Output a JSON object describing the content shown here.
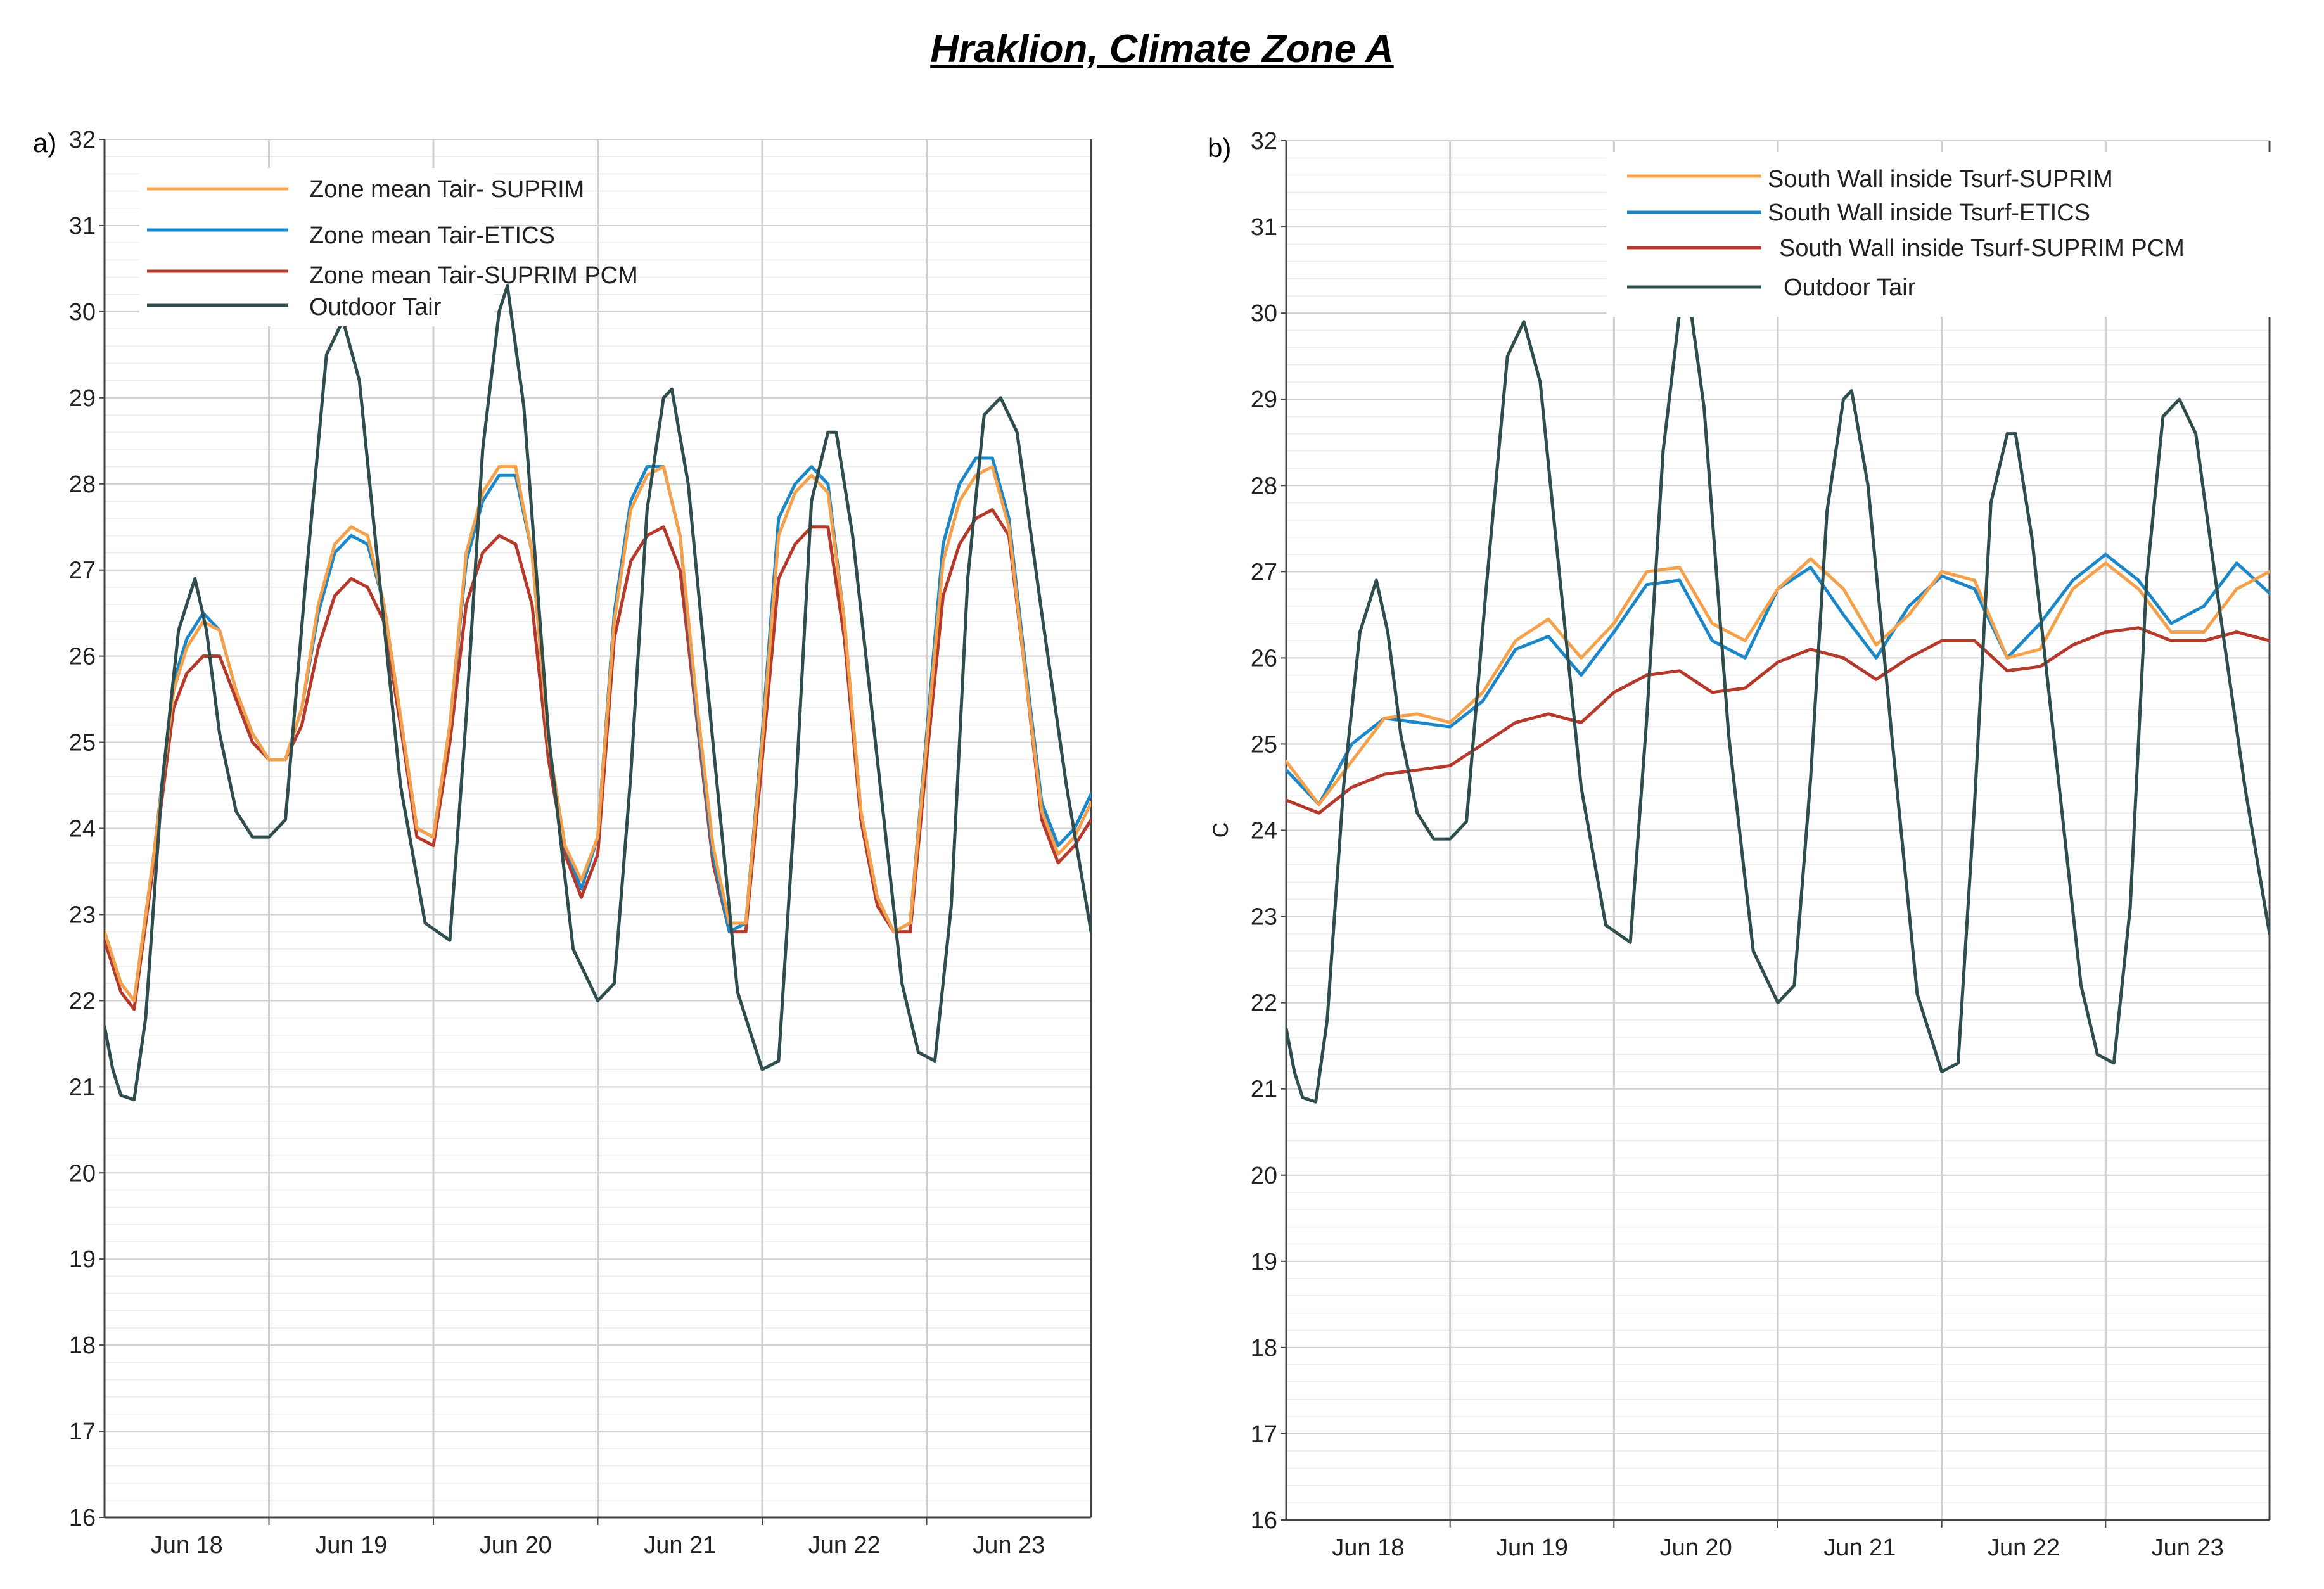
{
  "page_title": "Hraklion, Climate Zone A",
  "colors": {
    "orange": "#F5A04A",
    "blue": "#1B86C8",
    "red": "#B53A2C",
    "dark": "#2E4D4C",
    "grid_major": "#cfcfcf",
    "grid_minor": "#ececec",
    "axis": "#444444"
  },
  "chart_data": [
    {
      "type": "line",
      "panel_label": "a)",
      "title": "",
      "xlabel": "",
      "ylabel": "",
      "x_ticks": [
        "Jun 18",
        "Jun 19",
        "Jun 20",
        "Jun 21",
        "Jun 22",
        "Jun 23"
      ],
      "x_unit": "day index (0 = start of Jun 18)",
      "xlim": [
        -0.5,
        5.5
      ],
      "ylim": [
        16,
        32
      ],
      "y_ticks": [
        16,
        17,
        18,
        19,
        20,
        21,
        22,
        23,
        24,
        25,
        26,
        27,
        28,
        29,
        30,
        31,
        32
      ],
      "grid": true,
      "legend_position": "top-left",
      "series": [
        {
          "name": "Zone mean Tair- SUPRIM",
          "color_key": "orange",
          "x": [
            -0.5,
            -0.4,
            -0.32,
            -0.2,
            -0.08,
            0.0,
            0.1,
            0.2,
            0.3,
            0.4,
            0.5,
            0.6,
            0.7,
            0.8,
            0.9,
            1.0,
            1.1,
            1.2,
            1.3,
            1.4,
            1.5,
            1.6,
            1.7,
            1.8,
            1.9,
            2.0,
            2.1,
            2.2,
            2.3,
            2.4,
            2.5,
            2.6,
            2.7,
            2.8,
            2.9,
            3.0,
            3.1,
            3.2,
            3.3,
            3.4,
            3.5,
            3.6,
            3.7,
            3.8,
            3.9,
            4.0,
            4.1,
            4.2,
            4.3,
            4.4,
            4.5,
            4.6,
            4.7,
            4.8,
            4.9,
            5.0,
            5.1,
            5.2,
            5.3,
            5.4,
            5.5
          ],
          "y": [
            22.8,
            22.2,
            22.0,
            23.7,
            25.6,
            26.1,
            26.4,
            26.3,
            25.6,
            25.1,
            24.8,
            24.8,
            25.4,
            26.6,
            27.3,
            27.5,
            27.4,
            26.6,
            25.3,
            24.0,
            23.9,
            25.2,
            27.2,
            27.9,
            28.2,
            28.2,
            27.2,
            25.0,
            23.8,
            23.4,
            23.9,
            26.4,
            27.7,
            28.1,
            28.2,
            27.4,
            25.5,
            23.8,
            22.9,
            22.9,
            25.0,
            27.4,
            27.9,
            28.1,
            27.9,
            26.4,
            24.2,
            23.2,
            22.8,
            22.9,
            25.0,
            27.1,
            27.8,
            28.1,
            28.2,
            27.5,
            25.8,
            24.2,
            23.7,
            23.9,
            24.3
          ]
        },
        {
          "name": "Zone mean Tair-ETICS",
          "color_key": "blue",
          "x": [
            -0.5,
            -0.4,
            -0.32,
            -0.2,
            -0.08,
            0.0,
            0.1,
            0.2,
            0.3,
            0.4,
            0.5,
            0.6,
            0.7,
            0.8,
            0.9,
            1.0,
            1.1,
            1.2,
            1.3,
            1.4,
            1.5,
            1.6,
            1.7,
            1.8,
            1.9,
            2.0,
            2.1,
            2.2,
            2.3,
            2.4,
            2.5,
            2.6,
            2.7,
            2.8,
            2.9,
            3.0,
            3.1,
            3.2,
            3.3,
            3.4,
            3.5,
            3.6,
            3.7,
            3.8,
            3.9,
            4.0,
            4.1,
            4.2,
            4.3,
            4.4,
            4.5,
            4.6,
            4.7,
            4.8,
            4.9,
            5.0,
            5.1,
            5.2,
            5.3,
            5.4,
            5.5
          ],
          "y": [
            22.8,
            22.2,
            22.0,
            23.7,
            25.7,
            26.2,
            26.5,
            26.3,
            25.6,
            25.1,
            24.8,
            24.8,
            25.4,
            26.5,
            27.2,
            27.4,
            27.3,
            26.6,
            25.3,
            24.0,
            23.9,
            25.2,
            27.1,
            27.8,
            28.1,
            28.1,
            27.2,
            25.0,
            23.8,
            23.3,
            23.9,
            26.5,
            27.8,
            28.2,
            28.2,
            27.4,
            25.4,
            23.7,
            22.8,
            22.9,
            25.1,
            27.6,
            28.0,
            28.2,
            28.0,
            26.4,
            24.2,
            23.2,
            22.8,
            22.9,
            25.1,
            27.3,
            28.0,
            28.3,
            28.3,
            27.6,
            25.9,
            24.3,
            23.8,
            24.0,
            24.4
          ]
        },
        {
          "name": "Zone mean Tair-SUPRIM PCM",
          "color_key": "red",
          "x": [
            -0.5,
            -0.4,
            -0.32,
            -0.2,
            -0.08,
            0.0,
            0.1,
            0.2,
            0.3,
            0.4,
            0.5,
            0.6,
            0.7,
            0.8,
            0.9,
            1.0,
            1.1,
            1.2,
            1.3,
            1.4,
            1.5,
            1.6,
            1.7,
            1.8,
            1.9,
            2.0,
            2.1,
            2.2,
            2.3,
            2.4,
            2.5,
            2.6,
            2.7,
            2.8,
            2.9,
            3.0,
            3.1,
            3.2,
            3.3,
            3.4,
            3.5,
            3.6,
            3.7,
            3.8,
            3.9,
            4.0,
            4.1,
            4.2,
            4.3,
            4.4,
            4.5,
            4.6,
            4.7,
            4.8,
            4.9,
            5.0,
            5.1,
            5.2,
            5.3,
            5.4,
            5.5
          ],
          "y": [
            22.7,
            22.1,
            21.9,
            23.6,
            25.4,
            25.8,
            26.0,
            26.0,
            25.5,
            25.0,
            24.8,
            24.8,
            25.2,
            26.1,
            26.7,
            26.9,
            26.8,
            26.4,
            25.2,
            23.9,
            23.8,
            25.0,
            26.6,
            27.2,
            27.4,
            27.3,
            26.6,
            24.8,
            23.7,
            23.2,
            23.7,
            26.2,
            27.1,
            27.4,
            27.5,
            27.0,
            25.3,
            23.6,
            22.8,
            22.8,
            24.8,
            26.9,
            27.3,
            27.5,
            27.5,
            26.2,
            24.1,
            23.1,
            22.8,
            22.8,
            24.8,
            26.7,
            27.3,
            27.6,
            27.7,
            27.4,
            25.8,
            24.1,
            23.6,
            23.8,
            24.1
          ]
        },
        {
          "name": "Outdoor Tair",
          "color_key": "dark",
          "x": [
            -0.5,
            -0.45,
            -0.4,
            -0.32,
            -0.25,
            -0.15,
            -0.05,
            0.05,
            0.12,
            0.2,
            0.3,
            0.4,
            0.5,
            0.6,
            0.72,
            0.85,
            0.95,
            1.05,
            1.15,
            1.3,
            1.45,
            1.6,
            1.7,
            1.8,
            1.9,
            1.95,
            2.05,
            2.2,
            2.35,
            2.5,
            2.6,
            2.7,
            2.8,
            2.9,
            2.95,
            3.05,
            3.2,
            3.35,
            3.5,
            3.6,
            3.7,
            3.8,
            3.9,
            3.95,
            4.05,
            4.2,
            4.35,
            4.45,
            4.55,
            4.65,
            4.75,
            4.85,
            4.95,
            5.05,
            5.2,
            5.35,
            5.5
          ],
          "y": [
            21.7,
            21.2,
            20.9,
            20.85,
            21.8,
            24.5,
            26.3,
            26.9,
            26.3,
            25.1,
            24.2,
            23.9,
            23.9,
            24.1,
            26.8,
            29.5,
            29.9,
            29.2,
            27.3,
            24.5,
            22.9,
            22.7,
            25.3,
            28.4,
            30.0,
            30.3,
            28.9,
            25.1,
            22.6,
            22.0,
            22.2,
            24.6,
            27.7,
            29.0,
            29.1,
            28.0,
            25.0,
            22.1,
            21.2,
            21.3,
            24.3,
            27.8,
            28.6,
            28.6,
            27.4,
            24.8,
            22.2,
            21.4,
            21.3,
            23.1,
            26.9,
            28.8,
            29.0,
            28.6,
            26.5,
            24.5,
            22.8
          ]
        }
      ]
    },
    {
      "type": "line",
      "panel_label": "b)",
      "title": "",
      "xlabel": "",
      "ylabel": "C",
      "x_ticks": [
        "Jun 18",
        "Jun 19",
        "Jun 20",
        "Jun 21",
        "Jun 22",
        "Jun 23"
      ],
      "x_unit": "day index (0 = start of Jun 18)",
      "xlim": [
        -0.5,
        5.5
      ],
      "ylim": [
        16,
        32
      ],
      "y_ticks": [
        16,
        17,
        18,
        19,
        20,
        21,
        22,
        23,
        24,
        25,
        26,
        27,
        28,
        29,
        30,
        31,
        32
      ],
      "grid": true,
      "legend_position": "top-right",
      "series": [
        {
          "name": "South Wall inside Tsurf-SUPRIM",
          "color_key": "orange",
          "x": [
            -0.5,
            -0.3,
            -0.1,
            0.1,
            0.3,
            0.5,
            0.7,
            0.9,
            1.1,
            1.3,
            1.5,
            1.7,
            1.9,
            2.1,
            2.3,
            2.5,
            2.7,
            2.9,
            3.1,
            3.3,
            3.5,
            3.7,
            3.9,
            4.1,
            4.3,
            4.5,
            4.7,
            4.9,
            5.1,
            5.3,
            5.5
          ],
          "y": [
            24.8,
            24.3,
            24.8,
            25.3,
            25.35,
            25.25,
            25.6,
            26.2,
            26.45,
            26.0,
            26.4,
            27.0,
            27.05,
            26.4,
            26.2,
            26.8,
            27.15,
            26.8,
            26.15,
            26.5,
            27.0,
            26.9,
            26.0,
            26.1,
            26.8,
            27.1,
            26.8,
            26.3,
            26.3,
            26.8,
            27.0
          ]
        },
        {
          "name": "South Wall inside Tsurf-ETICS",
          "color_key": "blue",
          "x": [
            -0.5,
            -0.3,
            -0.1,
            0.1,
            0.3,
            0.5,
            0.7,
            0.9,
            1.1,
            1.3,
            1.5,
            1.7,
            1.9,
            2.1,
            2.3,
            2.5,
            2.7,
            2.9,
            3.1,
            3.3,
            3.5,
            3.7,
            3.9,
            4.1,
            4.3,
            4.5,
            4.7,
            4.9,
            5.1,
            5.3,
            5.5
          ],
          "y": [
            24.7,
            24.3,
            25.0,
            25.3,
            25.25,
            25.2,
            25.5,
            26.1,
            26.25,
            25.8,
            26.3,
            26.85,
            26.9,
            26.2,
            26.0,
            26.8,
            27.05,
            26.5,
            26.0,
            26.6,
            26.95,
            26.8,
            26.0,
            26.4,
            26.9,
            27.2,
            26.9,
            26.4,
            26.6,
            27.1,
            26.75
          ]
        },
        {
          "name": "South Wall inside Tsurf-SUPRIM PCM",
          "color_key": "red",
          "x": [
            -0.5,
            -0.3,
            -0.1,
            0.1,
            0.3,
            0.5,
            0.7,
            0.9,
            1.1,
            1.3,
            1.5,
            1.7,
            1.9,
            2.1,
            2.3,
            2.5,
            2.7,
            2.9,
            3.1,
            3.3,
            3.5,
            3.7,
            3.9,
            4.1,
            4.3,
            4.5,
            4.7,
            4.9,
            5.1,
            5.3,
            5.5
          ],
          "y": [
            24.35,
            24.2,
            24.5,
            24.65,
            24.7,
            24.75,
            25.0,
            25.25,
            25.35,
            25.25,
            25.6,
            25.8,
            25.85,
            25.6,
            25.65,
            25.95,
            26.1,
            26.0,
            25.75,
            26.0,
            26.2,
            26.2,
            25.85,
            25.9,
            26.15,
            26.3,
            26.35,
            26.2,
            26.2,
            26.3,
            26.2
          ]
        },
        {
          "name": "Outdoor Tair",
          "color_key": "dark",
          "x": [
            -0.5,
            -0.45,
            -0.4,
            -0.32,
            -0.25,
            -0.15,
            -0.05,
            0.05,
            0.12,
            0.2,
            0.3,
            0.4,
            0.5,
            0.6,
            0.72,
            0.85,
            0.95,
            1.05,
            1.15,
            1.3,
            1.45,
            1.6,
            1.7,
            1.8,
            1.9,
            1.95,
            2.05,
            2.2,
            2.35,
            2.5,
            2.6,
            2.7,
            2.8,
            2.9,
            2.95,
            3.05,
            3.2,
            3.35,
            3.5,
            3.6,
            3.7,
            3.8,
            3.9,
            3.95,
            4.05,
            4.2,
            4.35,
            4.45,
            4.55,
            4.65,
            4.75,
            4.85,
            4.95,
            5.05,
            5.2,
            5.35,
            5.5
          ],
          "y": [
            21.7,
            21.2,
            20.9,
            20.85,
            21.8,
            24.5,
            26.3,
            26.9,
            26.3,
            25.1,
            24.2,
            23.9,
            23.9,
            24.1,
            26.8,
            29.5,
            29.9,
            29.2,
            27.3,
            24.5,
            22.9,
            22.7,
            25.3,
            28.4,
            30.0,
            30.3,
            28.9,
            25.1,
            22.6,
            22.0,
            22.2,
            24.6,
            27.7,
            29.0,
            29.1,
            28.0,
            25.0,
            22.1,
            21.2,
            21.3,
            24.3,
            27.8,
            28.6,
            28.6,
            27.4,
            24.8,
            22.2,
            21.4,
            21.3,
            23.1,
            26.9,
            28.8,
            29.0,
            28.6,
            26.5,
            24.5,
            22.8
          ]
        }
      ]
    }
  ]
}
